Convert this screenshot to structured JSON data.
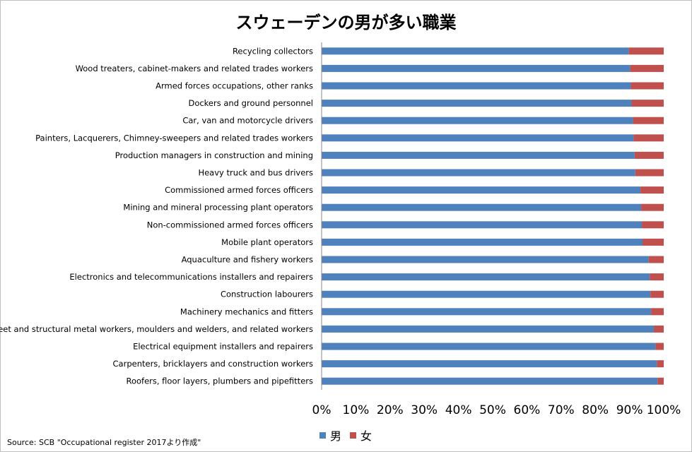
{
  "title": "スウェーデンの男が多い職業",
  "source": "Source: SCB \"Occupational register 2017より作成\"",
  "colors": {
    "male": "#4f81bd",
    "female": "#c0504d"
  },
  "legend": [
    {
      "name": "男",
      "color": "#4f81bd"
    },
    {
      "name": "女",
      "color": "#c0504d"
    }
  ],
  "chart_data": {
    "type": "bar",
    "orientation": "horizontal",
    "stacked": true,
    "percent": true,
    "categories": [
      "Recycling collectors",
      "Wood treaters, cabinet-makers and related trades workers",
      "Armed forces occupations, other ranks",
      "Dockers and ground personnel",
      "Car, van and motorcycle drivers",
      "Painters, Lacquerers, Chimney-sweepers and related trades workers",
      "Production managers in construction and mining",
      "Heavy truck and bus drivers",
      "Commissioned armed forces officers",
      "Mining and mineral processing plant operators",
      "Non-commissioned armed forces officers",
      "Mobile plant operators",
      "Aquaculture and fishery workers",
      "Electronics and telecommunications installers and repairers",
      "Construction labourers",
      "Machinery mechanics and fitters",
      "Sheet and structural metal workers, moulders and welders, and related workers",
      "Electrical equipment installers and repairers",
      "Carpenters, bricklayers and construction workers",
      "Roofers, floor layers, plumbers and pipefitters"
    ],
    "series": [
      {
        "name": "男",
        "values": [
          89.8,
          90.2,
          90.4,
          90.6,
          91.0,
          91.2,
          91.5,
          91.7,
          93.2,
          93.4,
          93.6,
          93.8,
          95.6,
          95.9,
          96.1,
          96.3,
          97.1,
          97.6,
          98.0,
          98.2
        ]
      },
      {
        "name": "女",
        "values": [
          10.2,
          9.8,
          9.6,
          9.4,
          9.0,
          8.8,
          8.5,
          8.3,
          6.8,
          6.6,
          6.4,
          6.2,
          4.4,
          4.1,
          3.9,
          3.7,
          2.9,
          2.4,
          2.0,
          1.8
        ]
      }
    ],
    "xticks": [
      "0%",
      "10%",
      "20%",
      "30%",
      "40%",
      "50%",
      "60%",
      "70%",
      "80%",
      "90%",
      "100%"
    ],
    "xlim": [
      0,
      100
    ],
    "grid": false,
    "legend_position": "bottom"
  }
}
